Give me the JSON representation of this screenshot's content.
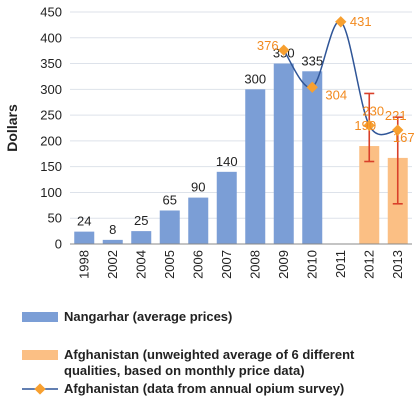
{
  "chart_data": {
    "type": "bar",
    "ylabel": "Dollars",
    "ylim": [
      0,
      450
    ],
    "yticks": [
      0,
      50,
      100,
      150,
      200,
      250,
      300,
      350,
      400,
      450
    ],
    "categories": [
      "1998",
      "2002",
      "2004",
      "2005",
      "2006",
      "2007",
      "2008",
      "2009",
      "2010",
      "2011",
      "2012",
      "2013"
    ],
    "grid": true,
    "colors": {
      "nangarhar": "#7b9ed6",
      "afghanistan_monthly": "#fbbf84",
      "afghanistan_survey": "#2f5597",
      "survey_marker": "#f7a030",
      "error_bar": "#d9402a",
      "label_orange": "#f28a1f",
      "grid": "#dde2ea"
    },
    "series": [
      {
        "name": "Nangarhar (average prices)",
        "type": "bar",
        "values": [
          24,
          8,
          25,
          65,
          90,
          140,
          300,
          350,
          335,
          null,
          null,
          null
        ],
        "labels": [
          "24",
          "8",
          "25",
          "65",
          "90",
          "140",
          "300",
          "350",
          "335",
          "",
          "",
          ""
        ]
      },
      {
        "name": "Afghanistan (unweighted average of 6 different qualities, based on monthly price data)",
        "type": "bar",
        "values": [
          null,
          null,
          null,
          null,
          null,
          null,
          null,
          null,
          null,
          null,
          190,
          167
        ],
        "labels": [
          "",
          "",
          "",
          "",
          "",
          "",
          "",
          "",
          "",
          "",
          "190",
          "167"
        ],
        "error_range": [
          null,
          null,
          null,
          null,
          null,
          null,
          null,
          null,
          null,
          null,
          [
            160,
            292
          ],
          [
            78,
            246
          ]
        ]
      },
      {
        "name": "Afghanistan (data from annual opium survey)",
        "type": "line",
        "values": [
          null,
          null,
          null,
          null,
          null,
          null,
          null,
          376,
          304,
          431,
          230,
          221
        ],
        "labels": [
          "",
          "",
          "",
          "",
          "",
          "",
          "",
          "376",
          "304",
          "431",
          "230",
          "221"
        ]
      }
    ],
    "legend": {
      "placement": "bottom",
      "entries": [
        "Nangarhar (average prices)",
        "Afghanistan (unweighted average of 6 different qualities, based on monthly price data)",
        "Afghanistan (data from annual opium survey)"
      ]
    }
  },
  "legend_text": {
    "nangarhar": "Nangarhar (average prices)",
    "monthly_line1": "Afghanistan (unweighted average of 6 different",
    "monthly_line2": "qualities, based on monthly price data)",
    "survey": "Afghanistan (data from annual opium survey)"
  }
}
